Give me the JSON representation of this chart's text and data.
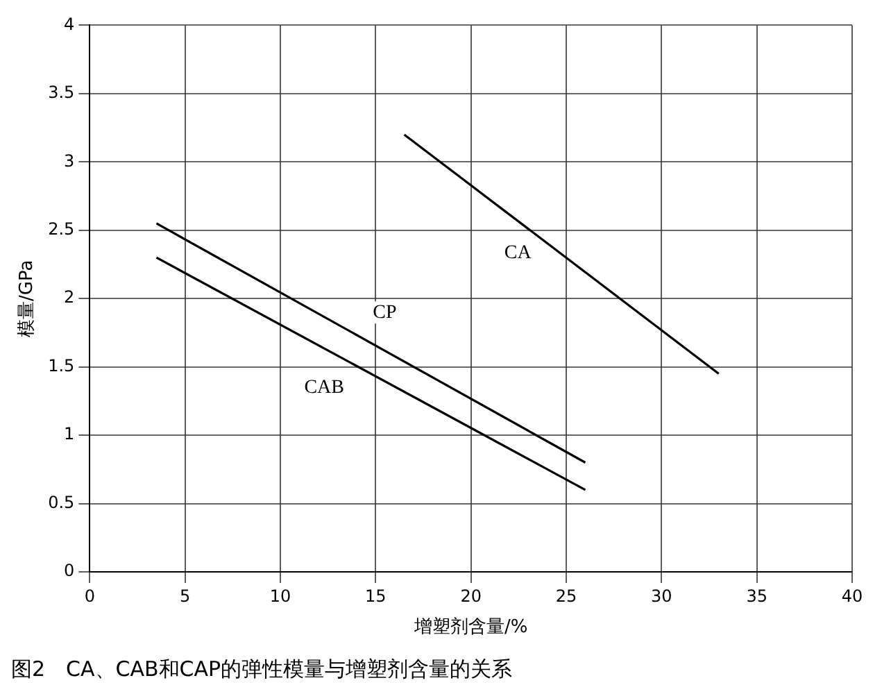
{
  "chart_data": {
    "type": "line",
    "title": "图2　CA、CAB和CAP的弹性模量与增塑剂含量的关系",
    "xlabel": "增塑剂含量/%",
    "ylabel": "模量/GPa",
    "xlim": [
      0,
      40
    ],
    "xticks": [
      0,
      5,
      10,
      15,
      20,
      25,
      30,
      35,
      40
    ],
    "ylim": [
      0,
      4
    ],
    "yticks": [
      0,
      0.5,
      1,
      1.5,
      2,
      2.5,
      3,
      3.5,
      4
    ],
    "grid": true,
    "legend": false,
    "marker": "none",
    "line_style": "solid",
    "series": [
      {
        "name": "CA",
        "color": "#000000",
        "x": [
          16.5,
          33
        ],
        "values": [
          3.2,
          1.45
        ]
      },
      {
        "name": "CP",
        "color": "#000000",
        "x": [
          3.5,
          26
        ],
        "values": [
          2.55,
          0.8
        ]
      },
      {
        "name": "CAB",
        "color": "#000000",
        "x": [
          3.5,
          26
        ],
        "values": [
          2.3,
          0.6
        ]
      }
    ]
  }
}
